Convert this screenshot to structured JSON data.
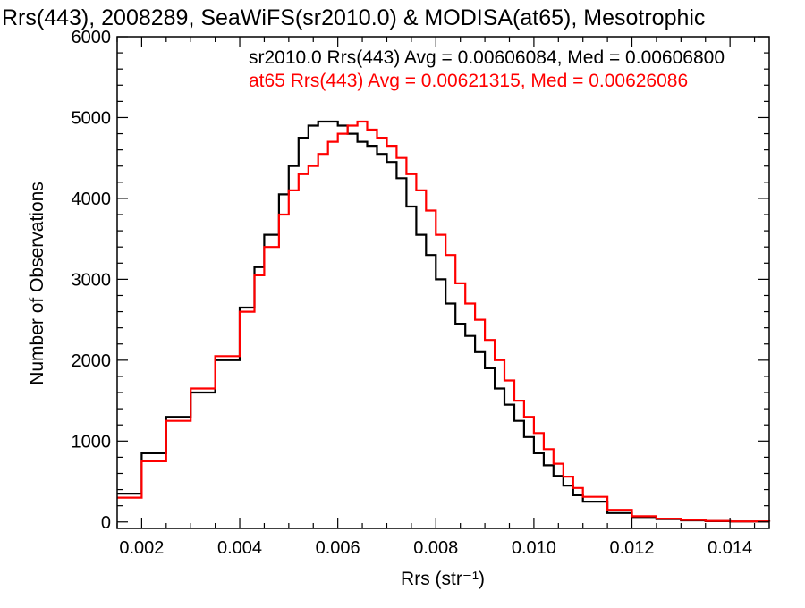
{
  "chart_data": {
    "type": "line",
    "title": "Rrs(443), 2008289, SeaWiFS(sr2010.0) & MODISA(at65), Mesotrophic",
    "xlabel": "Rrs (str⁻¹)",
    "ylabel": "Number of Observations",
    "xlim": [
      0.0015,
      0.0148
    ],
    "ylim": [
      -80,
      6000
    ],
    "x_ticks": [
      0.002,
      0.004,
      0.006,
      0.008,
      0.01,
      0.012,
      0.014
    ],
    "x_tick_labels": [
      "0.002",
      "0.004",
      "0.006",
      "0.008",
      "0.010",
      "0.012",
      "0.014"
    ],
    "y_ticks": [
      0,
      1000,
      2000,
      3000,
      4000,
      5000,
      6000
    ],
    "y_tick_labels": [
      "0",
      "1000",
      "2000",
      "3000",
      "4000",
      "5000",
      "6000"
    ],
    "grid": false,
    "legend_position": "top-right",
    "series": [
      {
        "name": "sr2010.0",
        "color": "#000000",
        "annotation": "sr2010.0 Rrs(443) Avg = 0.00606084, Med = 0.00606800",
        "x": [
          0.0015,
          0.002,
          0.0025,
          0.003,
          0.0035,
          0.004,
          0.0043,
          0.0045,
          0.0048,
          0.005,
          0.0052,
          0.0054,
          0.0056,
          0.0058,
          0.006,
          0.0062,
          0.0064,
          0.0066,
          0.0068,
          0.007,
          0.0072,
          0.0074,
          0.0076,
          0.0078,
          0.008,
          0.0082,
          0.0084,
          0.0086,
          0.0088,
          0.009,
          0.0092,
          0.0094,
          0.0096,
          0.0098,
          0.01,
          0.0102,
          0.0104,
          0.0106,
          0.0108,
          0.011,
          0.0115,
          0.012,
          0.0125,
          0.013,
          0.0135,
          0.014,
          0.0148
        ],
        "y": [
          350,
          850,
          1300,
          1600,
          2000,
          2650,
          3150,
          3550,
          4050,
          4400,
          4750,
          4900,
          4950,
          4950,
          4900,
          4800,
          4700,
          4650,
          4550,
          4450,
          4250,
          3900,
          3550,
          3300,
          3000,
          2700,
          2450,
          2300,
          2100,
          1900,
          1650,
          1450,
          1250,
          1050,
          850,
          700,
          570,
          450,
          330,
          250,
          110,
          60,
          35,
          20,
          10,
          5,
          3
        ]
      },
      {
        "name": "at65",
        "color": "#ff0000",
        "annotation": "at65 Rrs(443) Avg = 0.00621315, Med = 0.00626086",
        "x": [
          0.0015,
          0.002,
          0.0025,
          0.003,
          0.0035,
          0.004,
          0.0043,
          0.0045,
          0.0048,
          0.005,
          0.0052,
          0.0054,
          0.0056,
          0.0058,
          0.006,
          0.0062,
          0.0064,
          0.0066,
          0.0068,
          0.007,
          0.0072,
          0.0074,
          0.0076,
          0.0078,
          0.008,
          0.0082,
          0.0084,
          0.0086,
          0.0088,
          0.009,
          0.0092,
          0.0094,
          0.0096,
          0.0098,
          0.01,
          0.0102,
          0.0104,
          0.0106,
          0.0108,
          0.011,
          0.0115,
          0.012,
          0.0125,
          0.013,
          0.0135,
          0.014,
          0.0148
        ],
        "y": [
          300,
          750,
          1250,
          1650,
          2050,
          2600,
          3050,
          3400,
          3800,
          4100,
          4300,
          4400,
          4550,
          4700,
          4800,
          4900,
          4950,
          4850,
          4750,
          4650,
          4500,
          4300,
          4100,
          3850,
          3550,
          3300,
          2950,
          2700,
          2500,
          2250,
          2000,
          1750,
          1500,
          1300,
          1100,
          900,
          720,
          560,
          420,
          310,
          150,
          70,
          40,
          25,
          12,
          6,
          3
        ]
      }
    ]
  }
}
